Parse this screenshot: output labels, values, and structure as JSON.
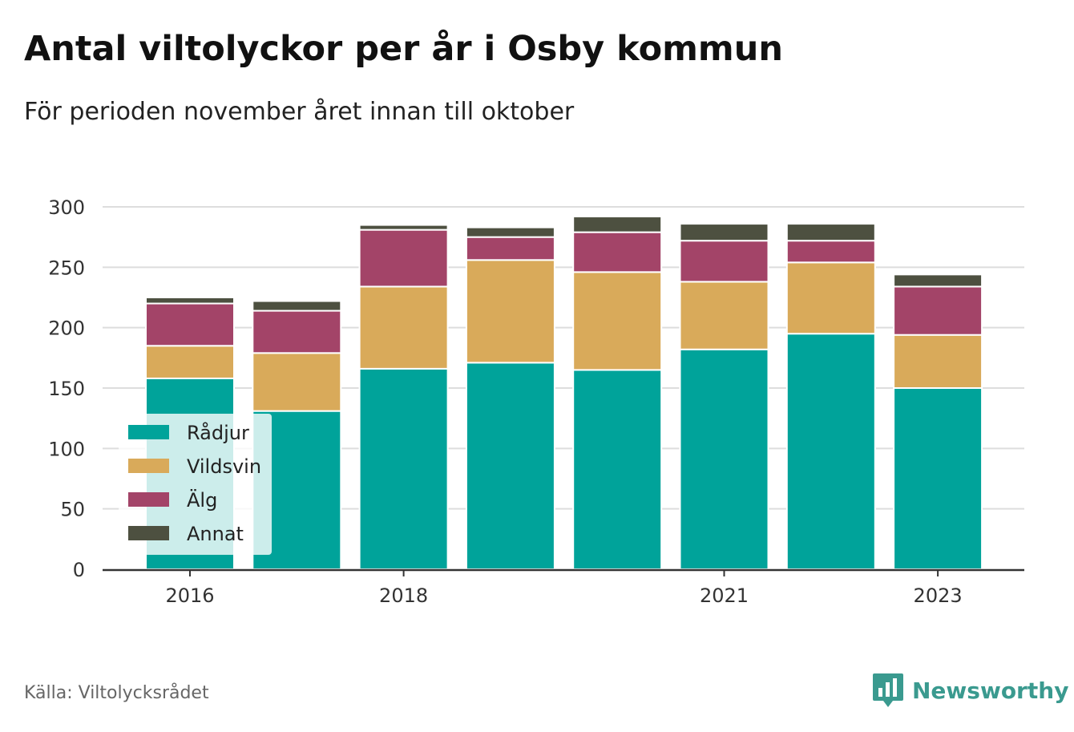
{
  "title": "Antal viltolyckor per år i Osby kommun",
  "subtitle": "För perioden november året innan till oktober",
  "source": "Källa: Viltolycksrådet",
  "brand": {
    "name": "Newsworthy",
    "icon": "bar-chart-speech-bubble-icon",
    "color": "#3a9a8f"
  },
  "chart_data": {
    "type": "bar",
    "stacked": true,
    "x": [
      2016,
      2017,
      2018,
      2019,
      2020,
      2021,
      2022,
      2023
    ],
    "x_tick_labels": [
      {
        "x": 2016,
        "label": "2016"
      },
      {
        "x": 2018,
        "label": "2018"
      },
      {
        "x": 2021,
        "label": "2021"
      },
      {
        "x": 2023,
        "label": "2023"
      }
    ],
    "series": [
      {
        "name": "Rådjur",
        "color": "#00a39a",
        "values": [
          158,
          131,
          166,
          171,
          165,
          182,
          195,
          150
        ]
      },
      {
        "name": "Vildsvin",
        "color": "#d9aa5a",
        "values": [
          27,
          48,
          68,
          85,
          81,
          56,
          59,
          44
        ]
      },
      {
        "name": "Älg",
        "color": "#a34468",
        "values": [
          35,
          35,
          47,
          19,
          33,
          34,
          18,
          40
        ]
      },
      {
        "name": "Annat",
        "color": "#4d5040",
        "values": [
          5,
          8,
          4,
          8,
          13,
          14,
          14,
          10
        ]
      }
    ],
    "ylim": [
      0,
      300
    ],
    "yticks": [
      0,
      50,
      100,
      150,
      200,
      250,
      300
    ],
    "grid": true,
    "legend_position": "bottom-left"
  }
}
